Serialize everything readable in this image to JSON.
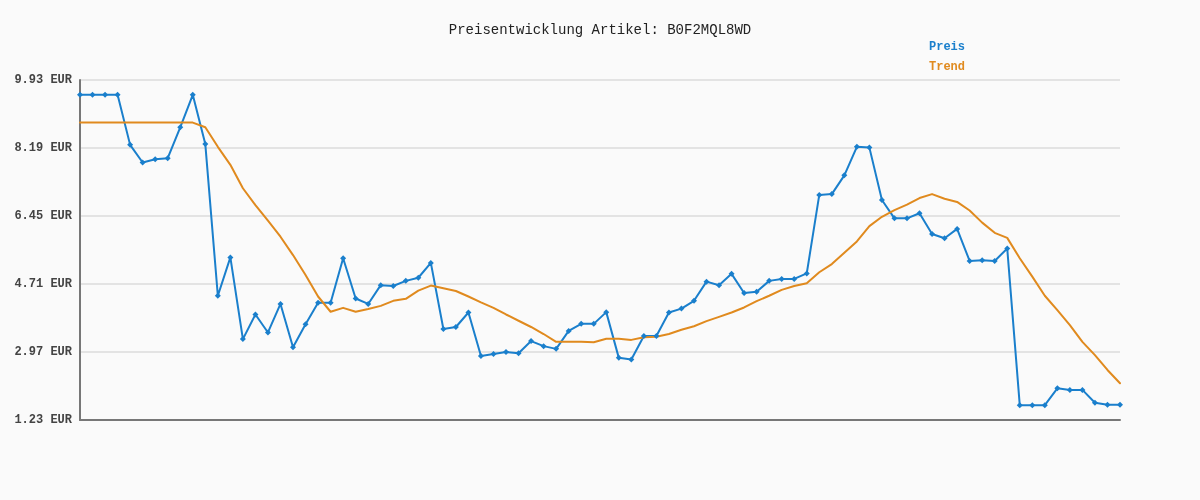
{
  "chart_data": {
    "type": "line",
    "title": "Preisentwicklung Artikel: B0F2MQL8WD",
    "categories": [
      null,
      null,
      null,
      null,
      null,
      null,
      null,
      null,
      null,
      null,
      null,
      null,
      null,
      null,
      null,
      null,
      null,
      null,
      null,
      null,
      null,
      null,
      null,
      null,
      null,
      null,
      null,
      null,
      null,
      null,
      null,
      null,
      null,
      null,
      null,
      null,
      null,
      null,
      null,
      null,
      null,
      null,
      null,
      null,
      null,
      null,
      null,
      null,
      null,
      null,
      null,
      null,
      null,
      null,
      null,
      null,
      null,
      null,
      null,
      null,
      null,
      null,
      null,
      null,
      null,
      null,
      null,
      null,
      null,
      null,
      null,
      null,
      null,
      null,
      null,
      null,
      null,
      null,
      null,
      null,
      null,
      null,
      null,
      null
    ],
    "series": [
      {
        "name": "Preis",
        "color": "#1a7fcc",
        "marker": "diamond",
        "values": [
          9.55,
          9.55,
          9.55,
          9.55,
          8.27,
          7.82,
          7.9,
          7.93,
          8.72,
          9.55,
          8.29,
          4.41,
          5.39,
          3.3,
          3.93,
          3.47,
          4.2,
          3.09,
          3.68,
          4.23,
          4.23,
          5.37,
          4.34,
          4.2,
          4.68,
          4.66,
          4.79,
          4.87,
          5.25,
          3.56,
          3.61,
          3.98,
          2.87,
          2.92,
          2.97,
          2.94,
          3.25,
          3.12,
          3.05,
          3.51,
          3.69,
          3.69,
          3.99,
          2.82,
          2.78,
          3.38,
          3.38,
          3.98,
          4.08,
          4.28,
          4.77,
          4.68,
          4.97,
          4.48,
          4.51,
          4.79,
          4.84,
          4.84,
          4.98,
          6.99,
          7.01,
          7.49,
          8.22,
          8.2,
          6.86,
          6.39,
          6.39,
          6.52,
          5.99,
          5.88,
          6.12,
          5.3,
          5.32,
          5.3,
          5.62,
          1.61,
          1.61,
          1.61,
          2.04,
          2.0,
          2.0,
          1.67,
          1.62,
          1.62
        ]
      },
      {
        "name": "Trend",
        "color": "#e08a1e",
        "marker": "none",
        "values": [
          8.84,
          8.84,
          8.84,
          8.84,
          8.84,
          8.84,
          8.84,
          8.84,
          8.84,
          8.84,
          8.72,
          8.22,
          7.76,
          7.16,
          6.73,
          6.33,
          5.92,
          5.45,
          4.94,
          4.39,
          4.0,
          4.1,
          4.0,
          4.07,
          4.15,
          4.28,
          4.33,
          4.54,
          4.67,
          4.6,
          4.53,
          4.39,
          4.24,
          4.1,
          3.93,
          3.77,
          3.61,
          3.43,
          3.23,
          3.23,
          3.23,
          3.22,
          3.31,
          3.31,
          3.28,
          3.35,
          3.36,
          3.43,
          3.54,
          3.63,
          3.76,
          3.87,
          3.98,
          4.11,
          4.27,
          4.41,
          4.56,
          4.66,
          4.73,
          5.01,
          5.22,
          5.51,
          5.8,
          6.19,
          6.43,
          6.6,
          6.74,
          6.91,
          7.01,
          6.89,
          6.81,
          6.59,
          6.28,
          6.02,
          5.89,
          5.37,
          4.9,
          4.41,
          4.04,
          3.66,
          3.23,
          2.89,
          2.51,
          2.17
        ]
      }
    ],
    "ylim": [
      1.23,
      9.93
    ],
    "yticks": [
      {
        "value": 1.23,
        "label": "1.23 EUR"
      },
      {
        "value": 2.97,
        "label": "2.97 EUR"
      },
      {
        "value": 4.71,
        "label": "4.71 EUR"
      },
      {
        "value": 6.45,
        "label": "6.45 EUR"
      },
      {
        "value": 8.19,
        "label": "8.19 EUR"
      },
      {
        "value": 9.93,
        "label": "9.93 EUR"
      }
    ],
    "grid": "y",
    "legend": "top right",
    "tick_labels": "y",
    "line_style": "solid"
  }
}
